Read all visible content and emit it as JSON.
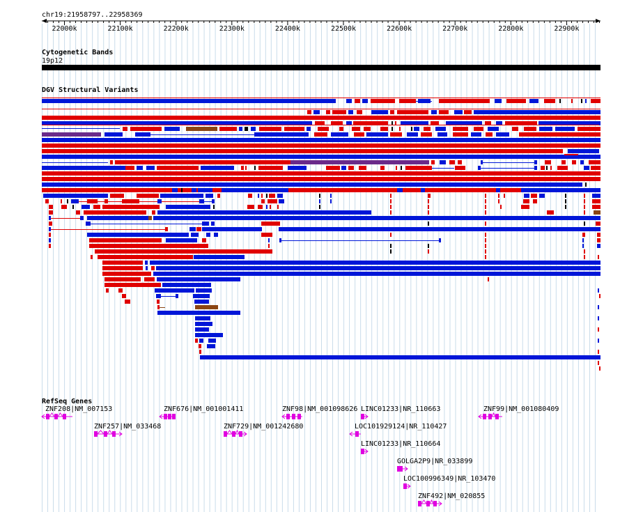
{
  "location": "chr19:21958797..22958369",
  "ruler": {
    "ticks": [
      "22000k",
      "22100k",
      "22200k",
      "22300k",
      "22400k",
      "22500k",
      "22600k",
      "22700k",
      "22800k",
      "22900k"
    ]
  },
  "tracks": {
    "cyto": {
      "title": "Cytogenetic Bands",
      "band_label": "19p12"
    },
    "dgv": {
      "title": "DGV Structural Variants"
    },
    "refseq": {
      "title": "RefSeq Genes"
    }
  },
  "genes": [
    {
      "label": "ZNF208|NM_007153",
      "strand": "-"
    },
    {
      "label": "ZNF257|NM_033468",
      "strand": "+"
    },
    {
      "label": "ZNF676|NM_001001411",
      "strand": "-"
    },
    {
      "label": "ZNF729|NM_001242680",
      "strand": "+"
    },
    {
      "label": "ZNF98|NM_001098626",
      "strand": "-"
    },
    {
      "label": "LINC01233|NR_110663",
      "strand": "+"
    },
    {
      "label": "LOC101929124|NR_110427",
      "strand": "-"
    },
    {
      "label": "LINC01233|NR_110664",
      "strand": "+"
    },
    {
      "label": "GOLGA2P9|NR_033899",
      "strand": "+"
    },
    {
      "label": "LOC100996349|NR_103470",
      "strand": "+"
    },
    {
      "label": "ZNF492|NM_020855",
      "strand": "+"
    },
    {
      "label": "ZNF99|NM_001080409",
      "strand": "-"
    }
  ],
  "colors": {
    "grid": "#c9dcea",
    "deletion": "#e00000",
    "duplication": "#0016d8",
    "inversion": "#6a2a8a",
    "complex": "#8b4513",
    "gene": "#e000e0",
    "band": "#000000"
  }
}
